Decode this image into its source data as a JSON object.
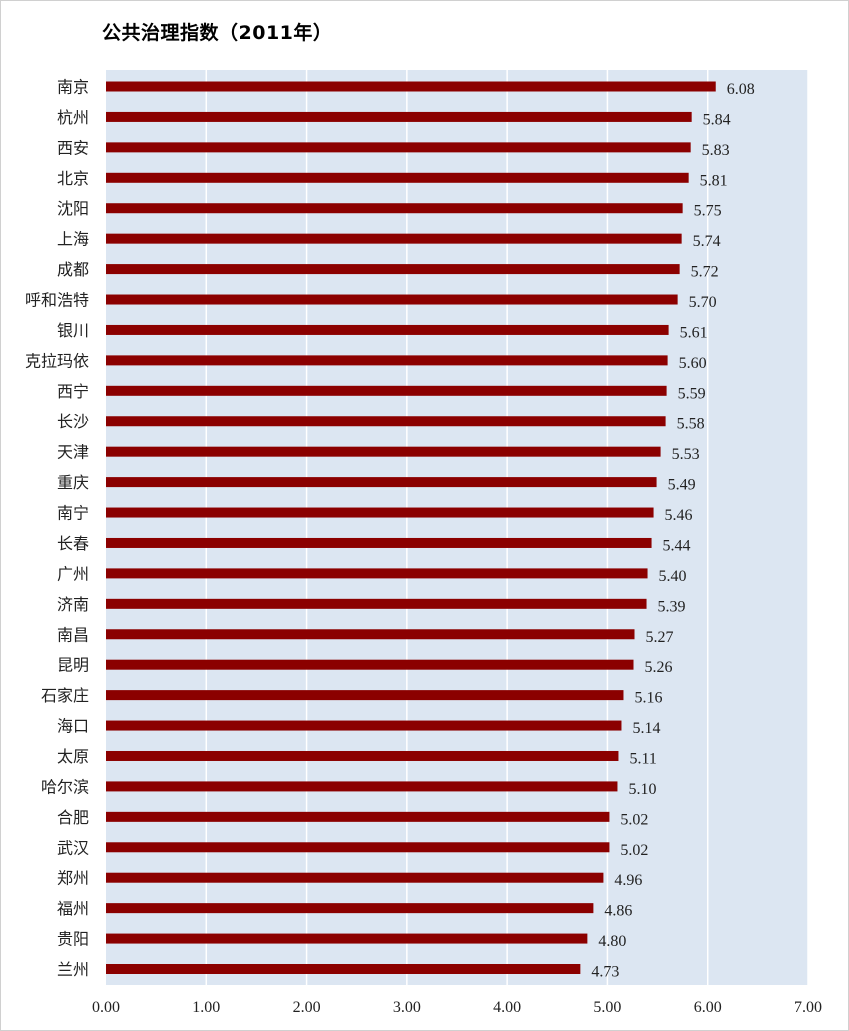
{
  "chart_data": {
    "type": "bar",
    "orientation": "horizontal",
    "title": "公共治理指数（2011年）",
    "categories": [
      "南京",
      "杭州",
      "西安",
      "北京",
      "沈阳",
      "上海",
      "成都",
      "呼和浩特",
      "银川",
      "克拉玛依",
      "西宁",
      "长沙",
      "天津",
      "重庆",
      "南宁",
      "长春",
      "广州",
      "济南",
      "南昌",
      "昆明",
      "石家庄",
      "海口",
      "太原",
      "哈尔滨",
      "合肥",
      "武汉",
      "郑州",
      "福州",
      "贵阳",
      "兰州"
    ],
    "values": [
      6.08,
      5.84,
      5.83,
      5.81,
      5.75,
      5.74,
      5.72,
      5.7,
      5.61,
      5.6,
      5.59,
      5.58,
      5.53,
      5.49,
      5.46,
      5.44,
      5.4,
      5.39,
      5.27,
      5.26,
      5.16,
      5.14,
      5.11,
      5.1,
      5.02,
      5.02,
      4.96,
      4.86,
      4.8,
      4.73
    ],
    "value_labels": [
      "6.08",
      "5.84",
      "5.83",
      "5.81",
      "5.75",
      "5.74",
      "5.72",
      "5.70",
      "5.61",
      "5.60",
      "5.59",
      "5.58",
      "5.53",
      "5.49",
      "5.46",
      "5.44",
      "5.40",
      "5.39",
      "5.27",
      "5.26",
      "5.16",
      "5.14",
      "5.11",
      "5.10",
      "5.02",
      "5.02",
      "4.96",
      "4.86",
      "4.80",
      "4.73"
    ],
    "xlim": [
      0,
      7
    ],
    "x_ticks": [
      "0.00",
      "1.00",
      "2.00",
      "3.00",
      "4.00",
      "5.00",
      "6.00",
      "7.00"
    ],
    "grid": true,
    "colors": {
      "bar": "#8B0000",
      "plot_bg": "#DCE6F2",
      "grid": "#FFFFFF"
    }
  }
}
